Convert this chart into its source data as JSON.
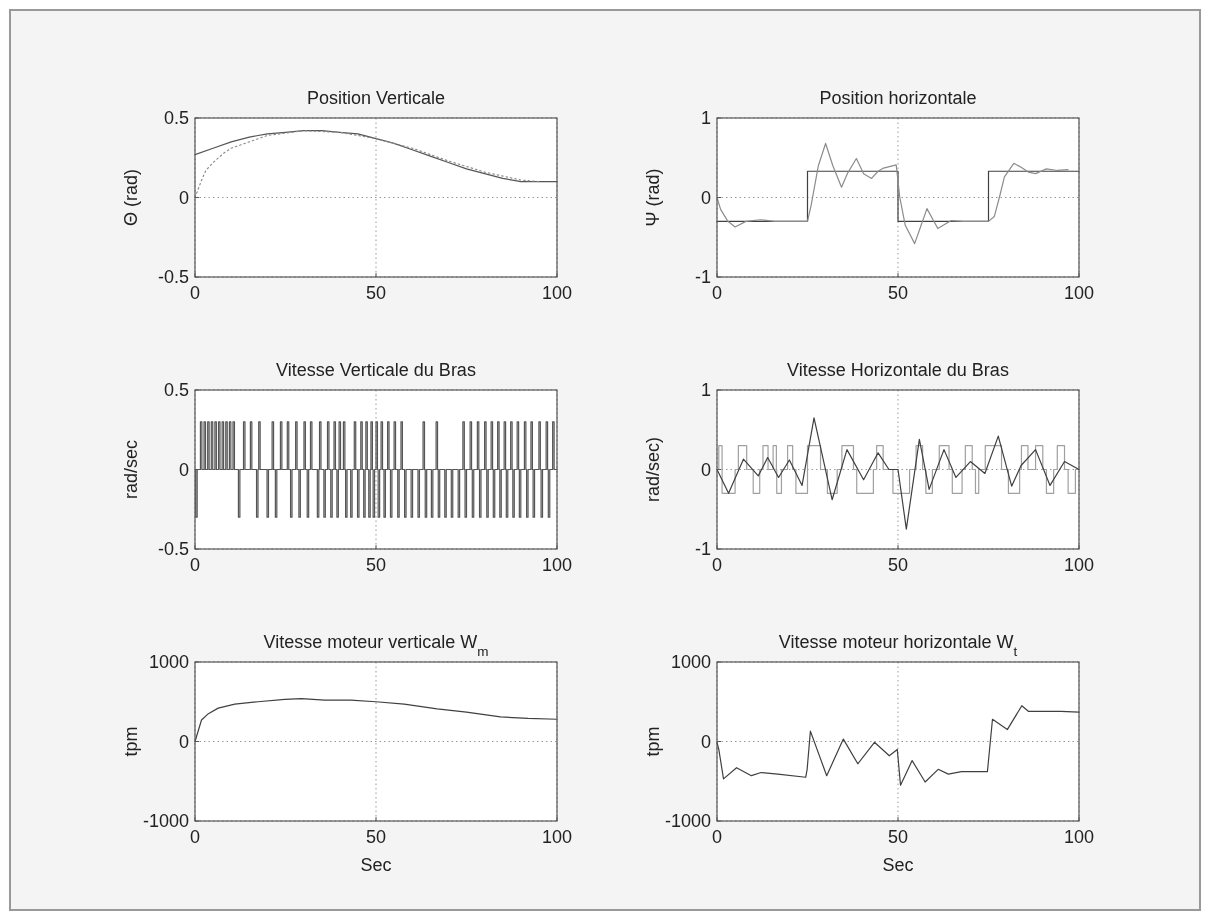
{
  "chart_data": [
    {
      "type": "line",
      "title": "Position Verticale",
      "ylabel": "Θ (rad)",
      "xlim": [
        0,
        100
      ],
      "xticks": [
        0,
        50,
        100
      ],
      "ylim": [
        -0.5,
        0.5
      ],
      "yticks": [
        -0.5,
        0,
        0.5
      ],
      "grid": true,
      "series": [
        {
          "color": "#555555",
          "x": [
            0,
            5,
            10,
            15,
            20,
            25,
            30,
            35,
            40,
            45,
            50,
            55,
            60,
            65,
            70,
            75,
            80,
            85,
            90,
            95,
            100
          ],
          "values": [
            0.27,
            0.31,
            0.35,
            0.38,
            0.4,
            0.41,
            0.42,
            0.42,
            0.41,
            0.4,
            0.37,
            0.34,
            0.3,
            0.26,
            0.22,
            0.18,
            0.15,
            0.12,
            0.1,
            0.1,
            0.1
          ]
        },
        {
          "color": "#8c8c8c",
          "line_style": "dotted",
          "x": [
            0,
            1,
            2,
            3,
            5,
            8,
            10,
            15,
            20,
            30,
            40,
            50,
            60,
            70,
            80,
            90,
            95
          ],
          "values": [
            0,
            0.06,
            0.12,
            0.17,
            0.22,
            0.28,
            0.31,
            0.35,
            0.39,
            0.42,
            0.41,
            0.37,
            0.31,
            0.23,
            0.16,
            0.11,
            0.1
          ]
        }
      ]
    },
    {
      "type": "line",
      "title": "Position horizontale",
      "ylabel": "Ψ (rad)",
      "xlim": [
        0,
        100
      ],
      "xticks": [
        0,
        50,
        100
      ],
      "ylim": [
        -1,
        1
      ],
      "yticks": [
        -1,
        0,
        1
      ],
      "grid": true,
      "series": [
        {
          "type": "step",
          "color": "#404040",
          "x": [
            0,
            25,
            50,
            75,
            100
          ],
          "values": [
            -0.3,
            0.33,
            -0.3,
            0.33,
            0.33
          ]
        },
        {
          "color": "#8c8c8c",
          "x": [
            0,
            1,
            3,
            5,
            8,
            12,
            16,
            20,
            25,
            26,
            28,
            30,
            32,
            34.4,
            36,
            38.5,
            40.5,
            42.7,
            44.5,
            46,
            49.5,
            50.5,
            52,
            54.6,
            56,
            58,
            61,
            64.7,
            68,
            72,
            75,
            76.6,
            78,
            79.4,
            82,
            84,
            86,
            88,
            91,
            94,
            97
          ],
          "values": [
            0,
            -0.15,
            -0.3,
            -0.37,
            -0.3,
            -0.28,
            -0.3,
            -0.3,
            -0.3,
            -0.1,
            0.4,
            0.68,
            0.4,
            0.13,
            0.3,
            0.49,
            0.3,
            0.24,
            0.33,
            0.37,
            0.41,
            0,
            -0.35,
            -0.58,
            -0.4,
            -0.14,
            -0.39,
            -0.29,
            -0.3,
            -0.3,
            -0.3,
            -0.24,
            0,
            0.26,
            0.43,
            0.38,
            0.32,
            0.3,
            0.36,
            0.34,
            0.35
          ]
        }
      ]
    },
    {
      "type": "step",
      "title": "Vitesse Verticale du Bras",
      "ylabel": "rad/sec",
      "xlim": [
        0,
        100
      ],
      "xticks": [
        0,
        50,
        100
      ],
      "ylim": [
        -0.5,
        0.5
      ],
      "yticks": [
        -0.5,
        0,
        0.5
      ],
      "grid": true,
      "series": [
        {
          "color": "#555555",
          "x": [
            0,
            0.2,
            0.6,
            1.5,
            1.9,
            2.5,
            2.9,
            3.5,
            3.9,
            4.5,
            4.9,
            5.5,
            5.9,
            6.5,
            6.9,
            7.5,
            7.9,
            8.5,
            8.9,
            9.5,
            9.9,
            10.5,
            10.9,
            12,
            12.4,
            13.4,
            13.8,
            15.3,
            15.7,
            17,
            17.4,
            17.6,
            18,
            19.9,
            20.3,
            21.3,
            21.7,
            22.2,
            22.6,
            23.6,
            24,
            25.5,
            25.9,
            26.4,
            26.8,
            27.8,
            28.2,
            28.7,
            29.1,
            30.1,
            30.5,
            31,
            31.4,
            31.9,
            32.3,
            33.8,
            34.2,
            34.4,
            34.8,
            35.6,
            36,
            36.6,
            37,
            37.5,
            37.9,
            38.4,
            38.8,
            39.2,
            39.6,
            39.8,
            40.2,
            41,
            41.4,
            41.6,
            42,
            43,
            43.4,
            44,
            44.4,
            44.9,
            45.3,
            45.8,
            46.2,
            46.6,
            47,
            47.2,
            47.6,
            48,
            48.4,
            48.6,
            49,
            49.2,
            49.6,
            50,
            50.4,
            50.6,
            51,
            51.4,
            51.8,
            52.2,
            52.6,
            53.2,
            53.6,
            54,
            54.4,
            55,
            55.4,
            56,
            56.4,
            56.9,
            57.3,
            57.9,
            58.3,
            59.7,
            60.1,
            61.6,
            62,
            63,
            63.4,
            63.6,
            64,
            65.3,
            65.7,
            66.6,
            67,
            67.2,
            67.6,
            69,
            69.4,
            70.8,
            71.2,
            72.7,
            73.1,
            74,
            74.4,
            74.6,
            75,
            76,
            76.4,
            76.6,
            77,
            78,
            78.4,
            78.6,
            79,
            80,
            80.4,
            80.6,
            81,
            81.8,
            82.2,
            82.4,
            82.8,
            83.6,
            84,
            84.2,
            84.6,
            85.4,
            85.8,
            86,
            86.4,
            87.2,
            87.6,
            87.8,
            88.2,
            89,
            89.4,
            89.6,
            90,
            91,
            91.4,
            91.6,
            92,
            92.8,
            93.2,
            93.4,
            93.8,
            95,
            95.4,
            95.6,
            96,
            97,
            97.4,
            97.6,
            98,
            98.8,
            99.2,
            100
          ],
          "values": [
            0,
            -0.3,
            0,
            0.3,
            0,
            0.3,
            0,
            0.3,
            0,
            0.3,
            0,
            0.3,
            0,
            0.3,
            0,
            0.3,
            0,
            0.3,
            0,
            0.3,
            0,
            0.3,
            0,
            -0.3,
            0,
            0.3,
            0,
            0.3,
            0,
            -0.3,
            0,
            0.3,
            0,
            -0.3,
            0,
            0.3,
            0,
            -0.3,
            0,
            0.3,
            0,
            0.3,
            0,
            -0.3,
            0,
            0.3,
            0,
            -0.3,
            0,
            0.3,
            0,
            -0.3,
            0,
            0.3,
            0,
            -0.3,
            0,
            0.3,
            0,
            -0.3,
            0,
            0.3,
            0,
            -0.3,
            0,
            0.3,
            0,
            -0.3,
            0,
            0.3,
            0,
            0.3,
            0,
            -0.3,
            0,
            -0.3,
            0,
            0.3,
            0,
            -0.3,
            0,
            0.3,
            0,
            -0.3,
            0,
            0.3,
            0,
            -0.3,
            0,
            0.3,
            0,
            -0.3,
            0,
            0.3,
            0,
            -0.3,
            0,
            0.3,
            0,
            -0.3,
            0,
            0.3,
            0,
            -0.3,
            0,
            0.3,
            0,
            -0.3,
            0,
            0.3,
            0,
            -0.3,
            0,
            -0.3,
            0,
            -0.3,
            0,
            0.3,
            0,
            -0.3,
            0,
            -0.3,
            0,
            0.3,
            0,
            -0.3,
            0,
            -0.3,
            0,
            -0.3,
            0,
            -0.3,
            0,
            0.3,
            0,
            -0.3,
            0,
            0.3,
            0,
            -0.3,
            0,
            0.3,
            0,
            -0.3,
            0,
            0.3,
            0,
            -0.3,
            0,
            0.3,
            0,
            -0.3,
            0,
            0.3,
            0,
            -0.3,
            0,
            0.3,
            0,
            -0.3,
            0,
            0.3,
            0,
            -0.3,
            0,
            0.3,
            0,
            -0.3,
            0,
            0.3,
            0,
            -0.3,
            0,
            0.3,
            0,
            -0.3,
            0,
            0.3,
            0,
            -0.3,
            0,
            0.3,
            0,
            -0.3,
            0,
            0.3,
            0,
            0
          ]
        }
      ]
    },
    {
      "type": "line",
      "title": "Vitesse Horizontale du Bras",
      "ylabel": "rad/sec)",
      "xlim": [
        0,
        100
      ],
      "xticks": [
        0,
        50,
        100
      ],
      "ylim": [
        -1,
        1
      ],
      "yticks": [
        -1,
        0,
        1
      ],
      "grid": true,
      "series": [
        {
          "type": "step",
          "color": "#a0a0a0",
          "x": [
            0,
            0.5,
            1.4,
            5,
            5.9,
            8.2,
            10,
            11.8,
            12.7,
            14.1,
            15.5,
            16.4,
            16.5,
            17.8,
            19.5,
            20.9,
            21.8,
            25,
            28.6,
            30.5,
            33.2,
            34.5,
            37.7,
            38.6,
            43.2,
            44.1,
            45.9,
            48.6,
            53.2,
            55,
            56.8,
            57.7,
            59.5,
            61.4,
            64.1,
            65,
            67.7,
            68.6,
            70.5,
            71.4,
            72.3,
            74.1,
            78.6,
            80.5,
            83.6,
            84.1,
            85.9,
            88,
            90,
            91,
            93,
            94,
            96,
            97,
            99,
            100
          ],
          "values": [
            0,
            0.3,
            -0.3,
            0,
            0.3,
            0,
            -0.3,
            0,
            0.3,
            0,
            0.3,
            0,
            -0.3,
            0,
            0.3,
            0,
            -0.3,
            0.3,
            0,
            -0.3,
            0,
            0.3,
            0,
            -0.3,
            0,
            0.3,
            0,
            -0.3,
            0,
            0.3,
            0,
            -0.3,
            0,
            0.3,
            0,
            -0.3,
            0,
            0.3,
            0,
            -0.3,
            0,
            0.3,
            0,
            -0.3,
            0,
            0.3,
            0,
            0.3,
            0,
            -0.3,
            0,
            0.3,
            0,
            -0.3,
            0,
            0
          ]
        },
        {
          "color": "#404040",
          "x": [
            0,
            3.2,
            7.3,
            11.4,
            14,
            17,
            20,
            23.5,
            26.8,
            28.5,
            31.8,
            35.9,
            40.5,
            44.5,
            47.5,
            50,
            52.3,
            55.9,
            58.6,
            62.7,
            66,
            70,
            74,
            77.7,
            81.4,
            84,
            88,
            92,
            96,
            100
          ],
          "values": [
            0,
            -0.3,
            0.13,
            -0.08,
            0.15,
            -0.1,
            0.12,
            -0.2,
            0.65,
            0.3,
            -0.38,
            0.25,
            -0.13,
            0.21,
            0,
            0,
            -0.75,
            0.38,
            -0.25,
            0.25,
            -0.1,
            0.1,
            -0.05,
            0.42,
            -0.21,
            0.05,
            0.25,
            -0.2,
            0.1,
            0
          ]
        }
      ]
    },
    {
      "type": "line",
      "title": "Vitesse moteur verticale W$_{m}$",
      "xlabel": "Sec",
      "ylabel": "tpm",
      "xlim": [
        0,
        100
      ],
      "xticks": [
        0,
        50,
        100
      ],
      "ylim": [
        -1000,
        1000
      ],
      "yticks": [
        -1000,
        0,
        1000
      ],
      "grid": true,
      "series": [
        {
          "color": "#404040",
          "x": [
            0,
            1.8,
            3.7,
            6.4,
            11,
            17.4,
            24.8,
            29.4,
            35.8,
            43,
            50,
            57.8,
            66.9,
            75,
            84.4,
            92,
            100
          ],
          "values": [
            0,
            270,
            350,
            420,
            470,
            500,
            530,
            540,
            520,
            520,
            500,
            470,
            410,
            370,
            310,
            290,
            280
          ]
        }
      ]
    },
    {
      "type": "line",
      "title": "Vitesse moteur horizontale W$_{t}$",
      "xlabel": "Sec",
      "ylabel": "tpm",
      "xlim": [
        0,
        100
      ],
      "xticks": [
        0,
        50,
        100
      ],
      "ylim": [
        -1000,
        1000
      ],
      "yticks": [
        -1000,
        0,
        1000
      ],
      "grid": true,
      "series": [
        {
          "color": "#404040",
          "x": [
            0,
            0.5,
            1.8,
            5.4,
            9.5,
            12.2,
            16.8,
            24.5,
            24.9,
            25.8,
            30.3,
            34.9,
            38.9,
            43.5,
            47.6,
            49.8,
            50.7,
            53.9,
            57.5,
            61.1,
            63.9,
            67.5,
            74.7,
            76.1,
            80.2,
            84.2,
            86,
            90,
            95,
            100
          ],
          "values": [
            -10,
            -100,
            -470,
            -330,
            -430,
            -390,
            -410,
            -450,
            -350,
            130,
            -430,
            30,
            -280,
            -10,
            -180,
            -100,
            -550,
            -240,
            -510,
            -350,
            -410,
            -380,
            -380,
            280,
            150,
            450,
            380,
            380,
            380,
            370
          ]
        }
      ]
    }
  ]
}
